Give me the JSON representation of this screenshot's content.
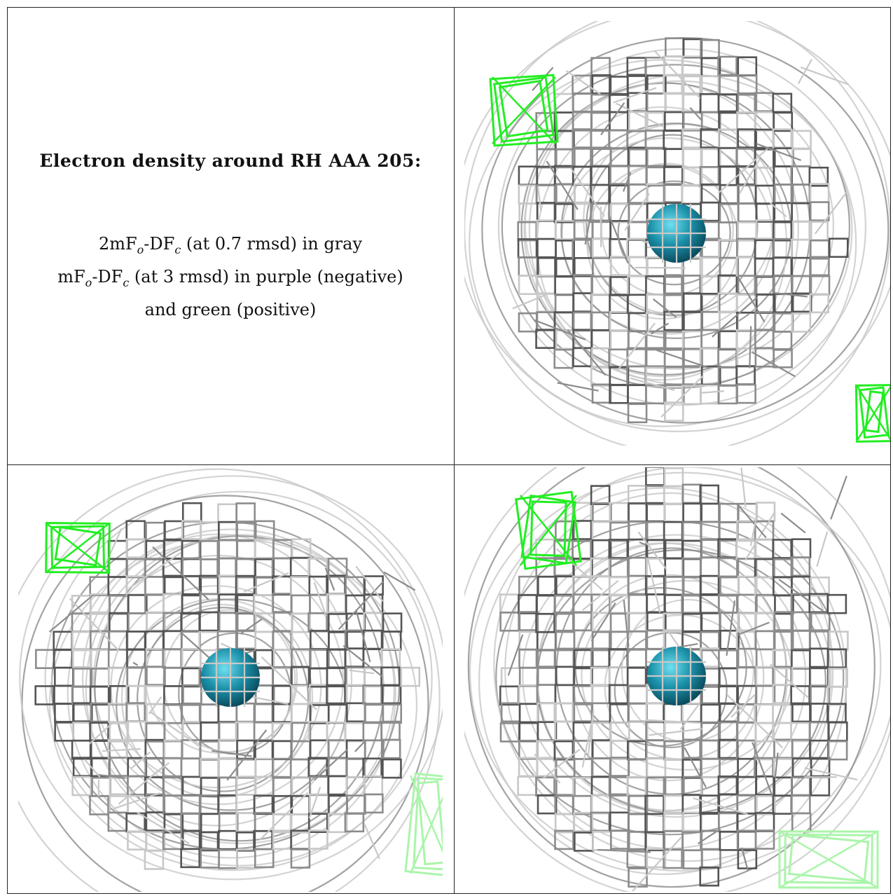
{
  "title": "Electron density around RH AAA 205:",
  "caption": {
    "line1": {
      "a": "2mF",
      "sub1": "o",
      "b": "-DF",
      "sub2": "c",
      "c": " (at 0.7 rmsd) in gray"
    },
    "line2": {
      "a": "mF",
      "sub1": "o",
      "b": "-DF",
      "sub2": "c",
      "c": " (at 3 rmsd) in purple (negative)"
    },
    "line3": "and green (positive)"
  },
  "colors": {
    "mesh_dark": "#555555",
    "mesh_mid": "#8c8c8c",
    "mesh_light": "#c8c8c8",
    "positive": "#22ee22",
    "positive_faded": "#aaf5aa",
    "ion": "#1a8fa8"
  },
  "panels": [
    {
      "name": "view-top-right",
      "seed": 7
    },
    {
      "name": "view-bottom-left",
      "seed": 13
    },
    {
      "name": "view-bottom-right",
      "seed": 29
    }
  ]
}
